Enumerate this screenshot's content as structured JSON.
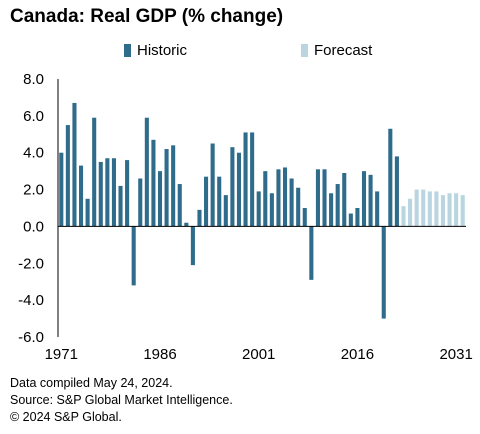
{
  "title": "Canada: Real GDP (% change)",
  "legend": [
    {
      "label": "Historic",
      "color": "#2f6c8b"
    },
    {
      "label": "Forecast",
      "color": "#b9d5df"
    }
  ],
  "chart_data": {
    "type": "bar",
    "title": "Canada: Real GDP (% change)",
    "x": [
      1971,
      1972,
      1973,
      1974,
      1975,
      1976,
      1977,
      1978,
      1979,
      1980,
      1981,
      1982,
      1983,
      1984,
      1985,
      1986,
      1987,
      1988,
      1989,
      1990,
      1991,
      1992,
      1993,
      1994,
      1995,
      1996,
      1997,
      1998,
      1999,
      2000,
      2001,
      2002,
      2003,
      2004,
      2005,
      2006,
      2007,
      2008,
      2009,
      2010,
      2011,
      2012,
      2013,
      2014,
      2015,
      2016,
      2017,
      2018,
      2019,
      2020,
      2021,
      2022,
      2023,
      2024,
      2025,
      2026,
      2027,
      2028,
      2029,
      2030,
      2031,
      2032
    ],
    "series": [
      {
        "name": "Historic",
        "values": [
          4.0,
          5.5,
          6.7,
          3.3,
          1.5,
          5.9,
          3.5,
          3.7,
          3.7,
          2.2,
          3.6,
          -3.2,
          2.6,
          5.9,
          4.7,
          3.0,
          4.2,
          4.4,
          2.3,
          0.2,
          -2.1,
          0.9,
          2.7,
          4.5,
          2.7,
          1.7,
          4.3,
          4.0,
          5.1,
          5.1,
          1.9,
          3.0,
          1.8,
          3.1,
          3.2,
          2.6,
          2.1,
          1.0,
          -2.9,
          3.1,
          3.1,
          1.8,
          2.3,
          2.9,
          0.7,
          1.0,
          3.0,
          2.8,
          1.9,
          -5.0,
          5.3,
          3.8,
          null,
          null,
          null,
          null,
          null,
          null,
          null,
          null,
          null,
          null
        ]
      },
      {
        "name": "Forecast",
        "values": [
          null,
          null,
          null,
          null,
          null,
          null,
          null,
          null,
          null,
          null,
          null,
          null,
          null,
          null,
          null,
          null,
          null,
          null,
          null,
          null,
          null,
          null,
          null,
          null,
          null,
          null,
          null,
          null,
          null,
          null,
          null,
          null,
          null,
          null,
          null,
          null,
          null,
          null,
          null,
          null,
          null,
          null,
          null,
          null,
          null,
          null,
          null,
          null,
          null,
          null,
          null,
          null,
          1.1,
          1.5,
          2.0,
          2.0,
          1.9,
          1.9,
          1.7,
          1.8,
          1.8,
          1.7
        ]
      }
    ],
    "xticks": [
      "1971",
      "1986",
      "2001",
      "2016",
      "2031"
    ],
    "yticks": [
      "8.0",
      "6.0",
      "4.0",
      "2.0",
      "0.0",
      "-2.0",
      "-4.0",
      "-6.0"
    ],
    "ylim": [
      -6,
      8
    ],
    "xlabel": "",
    "ylabel": "",
    "grid": false
  },
  "notes": [
    "Data compiled May 24, 2024.",
    "Source: S&P Global Market Intelligence.",
    "© 2024 S&P Global."
  ]
}
